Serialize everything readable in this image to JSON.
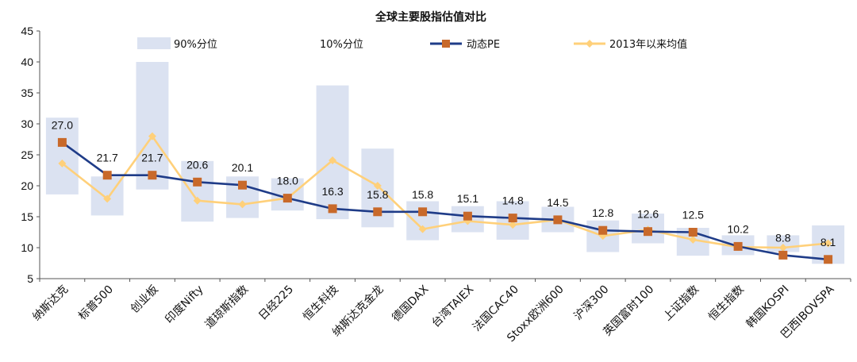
{
  "chart_data": {
    "type": "line",
    "title": "全球主要股指估值对比",
    "categories": [
      "纳斯达克",
      "标普500",
      "创业板",
      "印度Nifty",
      "道琼斯指数",
      "日经225",
      "恒生科技",
      "纳斯达克金龙",
      "德国DAX",
      "台湾TAIEX",
      "法国CAC40",
      "Stoxx欧洲600",
      "沪深300",
      "英国富时100",
      "上证指数",
      "恒生指数",
      "韩国KOSPI",
      "巴西IBOVSPA"
    ],
    "ylim": [
      5,
      45
    ],
    "yticks": [
      5,
      10,
      15,
      20,
      25,
      30,
      35,
      40,
      45
    ],
    "legend": [
      "90%分位",
      "10%分位",
      "动态PE",
      "2013年以来均值"
    ],
    "legend_position": "top",
    "band_high": [
      31.0,
      21.5,
      40.0,
      24.0,
      21.5,
      21.2,
      36.2,
      26.0,
      17.5,
      16.7,
      17.5,
      16.6,
      14.4,
      15.5,
      13.2,
      12.0,
      12.0,
      13.6
    ],
    "band_low": [
      18.6,
      15.2,
      19.4,
      14.2,
      14.8,
      16.0,
      14.6,
      13.3,
      11.2,
      12.5,
      11.3,
      12.5,
      9.3,
      10.7,
      8.7,
      8.8,
      9.3,
      7.4
    ],
    "series": [
      {
        "name": "动态PE",
        "color": "#1f3c88",
        "marker": "#c8692a",
        "values": [
          27.0,
          21.7,
          21.7,
          20.6,
          20.1,
          18.0,
          16.3,
          15.8,
          15.8,
          15.1,
          14.8,
          14.5,
          12.8,
          12.6,
          12.5,
          10.2,
          8.8,
          8.1
        ],
        "labels": [
          "27.0",
          "21.7",
          "21.7",
          "20.6",
          "20.1",
          "18.0",
          "16.3",
          "15.8",
          "15.8",
          "15.1",
          "14.8",
          "14.5",
          "12.8",
          "12.6",
          "12.5",
          "10.2",
          "8.8",
          "8.1"
        ]
      },
      {
        "name": "2013年以来均值",
        "color": "#ffd07a",
        "values": [
          23.6,
          17.9,
          28.0,
          17.6,
          17.0,
          18.0,
          24.1,
          20.0,
          13.0,
          14.3,
          13.7,
          14.5,
          11.9,
          12.9,
          11.3,
          10.1,
          10.0,
          10.7
        ]
      }
    ],
    "colors": {
      "band": "#dbe2f1",
      "axis": "#555555"
    }
  }
}
